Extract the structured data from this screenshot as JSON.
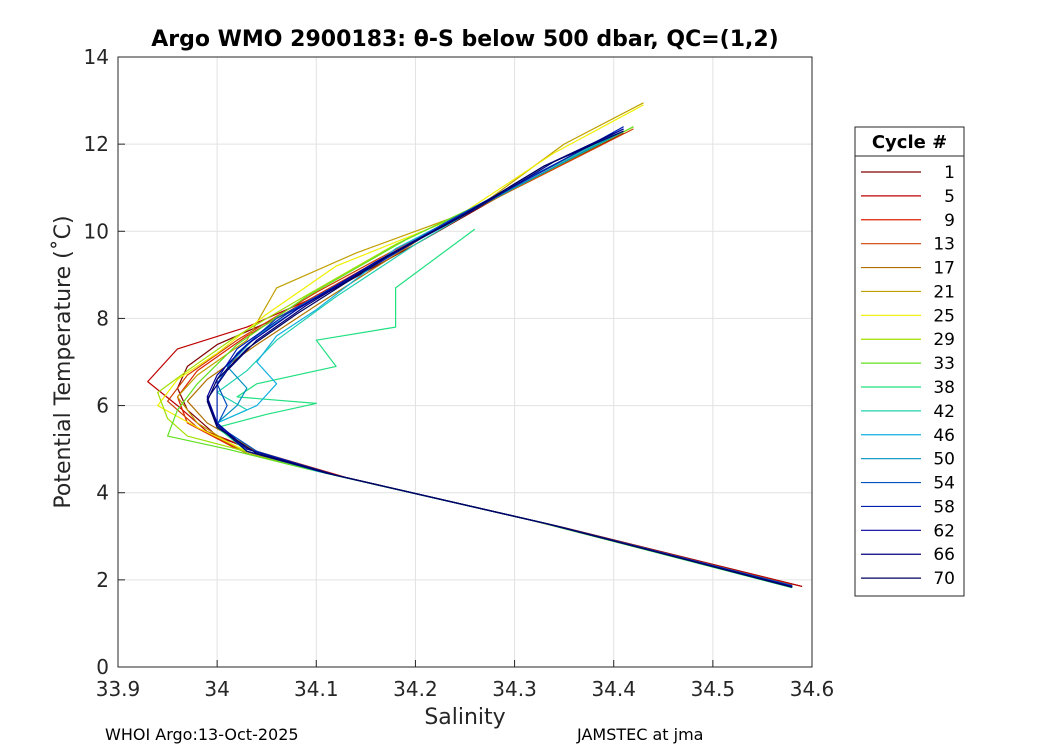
{
  "chart_data": {
    "type": "line",
    "title": "Argo WMO 2900183: θ-S below 500 dbar,  QC=(1,2)",
    "xlabel": "Salinity",
    "ylabel": "Potential Temperature (˚C)",
    "xlim": [
      33.9,
      34.6
    ],
    "ylim": [
      0,
      14
    ],
    "x_ticks": [
      33.9,
      34.0,
      34.1,
      34.2,
      34.3,
      34.4,
      34.5,
      34.6
    ],
    "x_tick_labels": [
      "33.9",
      "34",
      "34.1",
      "34.2",
      "34.3",
      "34.4",
      "34.5",
      "34.6"
    ],
    "y_ticks": [
      0,
      2,
      4,
      6,
      8,
      10,
      12,
      14
    ],
    "y_tick_labels": [
      "0",
      "2",
      "4",
      "6",
      "8",
      "10",
      "12",
      "14"
    ],
    "grid": true,
    "legend": {
      "title": "Cycle #",
      "placement": "right",
      "entries": [
        "1",
        "5",
        "9",
        "13",
        "17",
        "21",
        "25",
        "29",
        "33",
        "38",
        "42",
        "46",
        "50",
        "54",
        "58",
        "62",
        "66",
        "70"
      ],
      "colors": [
        "#800000",
        "#bf0000",
        "#df2000",
        "#d04000",
        "#b07000",
        "#c0a000",
        "#f0f000",
        "#a0e000",
        "#60e020",
        "#20e080",
        "#20d0b0",
        "#10b0e0",
        "#0090c0",
        "#0050c0",
        "#0020b0",
        "#0000a0",
        "#000080",
        "#000060"
      ]
    },
    "series": [
      {
        "name": "1",
        "color": "#800000",
        "points": [
          [
            34.59,
            1.85
          ],
          [
            34.35,
            3.2
          ],
          [
            34.12,
            4.4
          ],
          [
            34.05,
            4.85
          ],
          [
            34.0,
            5.3
          ],
          [
            33.97,
            5.9
          ],
          [
            33.96,
            6.4
          ],
          [
            33.97,
            6.9
          ],
          [
            34.0,
            7.4
          ],
          [
            34.06,
            8.0
          ],
          [
            34.12,
            8.7
          ],
          [
            34.2,
            9.7
          ],
          [
            34.3,
            11.0
          ],
          [
            34.41,
            12.25
          ]
        ]
      },
      {
        "name": "5",
        "color": "#bf0000",
        "points": [
          [
            34.59,
            1.85
          ],
          [
            34.33,
            3.3
          ],
          [
            34.13,
            4.35
          ],
          [
            34.04,
            4.95
          ],
          [
            33.99,
            5.4
          ],
          [
            33.96,
            6.0
          ],
          [
            33.93,
            6.55
          ],
          [
            33.96,
            7.3
          ],
          [
            34.03,
            7.8
          ],
          [
            34.1,
            8.5
          ],
          [
            34.2,
            9.8
          ],
          [
            34.31,
            11.1
          ],
          [
            34.41,
            12.3
          ]
        ]
      },
      {
        "name": "9",
        "color": "#df2000",
        "points": [
          [
            34.58,
            1.86
          ],
          [
            34.34,
            3.25
          ],
          [
            34.1,
            4.5
          ],
          [
            34.02,
            5.0
          ],
          [
            33.97,
            5.6
          ],
          [
            33.96,
            6.2
          ],
          [
            33.98,
            6.8
          ],
          [
            34.03,
            7.6
          ],
          [
            34.09,
            8.4
          ],
          [
            34.2,
            9.8
          ],
          [
            34.3,
            11.05
          ],
          [
            34.4,
            12.2
          ]
        ]
      },
      {
        "name": "13",
        "color": "#d04000",
        "points": [
          [
            34.58,
            1.88
          ],
          [
            34.32,
            3.35
          ],
          [
            34.11,
            4.45
          ],
          [
            34.03,
            4.9
          ],
          [
            33.98,
            5.5
          ],
          [
            33.95,
            6.1
          ],
          [
            33.97,
            6.7
          ],
          [
            34.02,
            7.5
          ],
          [
            34.1,
            8.6
          ],
          [
            34.21,
            9.95
          ],
          [
            34.32,
            11.2
          ],
          [
            34.42,
            12.35
          ]
        ]
      },
      {
        "name": "17",
        "color": "#b07000",
        "points": [
          [
            34.58,
            1.85
          ],
          [
            34.34,
            3.25
          ],
          [
            34.12,
            4.4
          ],
          [
            34.04,
            4.95
          ],
          [
            33.99,
            5.6
          ],
          [
            33.97,
            6.1
          ],
          [
            33.99,
            6.6
          ],
          [
            34.04,
            7.4
          ],
          [
            34.1,
            8.3
          ],
          [
            34.21,
            9.9
          ],
          [
            34.31,
            11.1
          ],
          [
            34.41,
            12.3
          ]
        ]
      },
      {
        "name": "21",
        "color": "#c0a000",
        "points": [
          [
            34.58,
            1.87
          ],
          [
            34.33,
            3.3
          ],
          [
            34.11,
            4.45
          ],
          [
            34.03,
            4.9
          ],
          [
            33.98,
            5.6
          ],
          [
            33.96,
            6.2
          ],
          [
            33.98,
            6.7
          ],
          [
            34.03,
            7.5
          ],
          [
            34.06,
            8.7
          ],
          [
            34.14,
            9.5
          ],
          [
            34.26,
            10.5
          ],
          [
            34.35,
            12.0
          ],
          [
            34.43,
            12.95
          ]
        ]
      },
      {
        "name": "25",
        "color": "#f0f000",
        "points": [
          [
            34.58,
            1.86
          ],
          [
            34.34,
            3.25
          ],
          [
            34.11,
            4.45
          ],
          [
            34.03,
            4.95
          ],
          [
            33.98,
            5.5
          ],
          [
            33.94,
            6.0
          ],
          [
            33.96,
            6.6
          ],
          [
            34.0,
            7.2
          ],
          [
            34.05,
            8.1
          ],
          [
            34.12,
            9.2
          ],
          [
            34.24,
            10.3
          ],
          [
            34.34,
            11.8
          ],
          [
            34.43,
            12.9
          ]
        ]
      },
      {
        "name": "29",
        "color": "#a0e000",
        "points": [
          [
            34.58,
            1.85
          ],
          [
            34.33,
            3.3
          ],
          [
            34.1,
            4.5
          ],
          [
            34.02,
            5.0
          ],
          [
            33.97,
            5.3
          ],
          [
            33.95,
            5.7
          ],
          [
            33.94,
            6.3
          ],
          [
            33.97,
            6.8
          ],
          [
            34.02,
            7.6
          ],
          [
            34.08,
            8.4
          ],
          [
            34.18,
            9.7
          ],
          [
            34.3,
            11.0
          ],
          [
            34.42,
            12.4
          ]
        ]
      },
      {
        "name": "33",
        "color": "#60e020",
        "points": [
          [
            34.58,
            1.82
          ],
          [
            34.32,
            3.35
          ],
          [
            34.09,
            4.55
          ],
          [
            34.01,
            5.0
          ],
          [
            33.95,
            5.3
          ],
          [
            33.96,
            5.9
          ],
          [
            33.98,
            6.5
          ],
          [
            34.02,
            7.4
          ],
          [
            34.09,
            8.5
          ],
          [
            34.19,
            9.8
          ],
          [
            34.3,
            11.0
          ],
          [
            34.42,
            12.4
          ]
        ]
      },
      {
        "name": "38",
        "color": "#20e080",
        "points": [
          [
            34.58,
            1.82
          ],
          [
            34.33,
            3.3
          ],
          [
            34.1,
            4.5
          ],
          [
            34.03,
            4.95
          ],
          [
            34.0,
            5.5
          ],
          [
            34.05,
            5.8
          ],
          [
            34.1,
            6.05
          ],
          [
            34.02,
            6.2
          ],
          [
            34.04,
            6.5
          ],
          [
            34.12,
            6.9
          ],
          [
            34.1,
            7.5
          ],
          [
            34.18,
            7.8
          ],
          [
            34.18,
            8.7
          ],
          [
            34.26,
            10.05
          ]
        ]
      },
      {
        "name": "42",
        "color": "#20d0b0",
        "points": [
          [
            34.58,
            1.84
          ],
          [
            34.34,
            3.25
          ],
          [
            34.11,
            4.45
          ],
          [
            34.03,
            4.95
          ],
          [
            34.0,
            5.6
          ],
          [
            34.03,
            5.9
          ],
          [
            34.0,
            6.3
          ],
          [
            34.03,
            6.8
          ],
          [
            34.06,
            7.5
          ],
          [
            34.12,
            8.5
          ],
          [
            34.2,
            9.7
          ],
          [
            34.3,
            11.05
          ],
          [
            34.4,
            12.2
          ]
        ]
      },
      {
        "name": "46",
        "color": "#10b0e0",
        "points": [
          [
            34.58,
            1.85
          ],
          [
            34.33,
            3.3
          ],
          [
            34.1,
            4.5
          ],
          [
            34.03,
            5.0
          ],
          [
            34.0,
            5.6
          ],
          [
            34.04,
            6.0
          ],
          [
            34.06,
            6.5
          ],
          [
            34.04,
            7.0
          ],
          [
            34.06,
            7.6
          ],
          [
            34.1,
            8.2
          ],
          [
            34.18,
            9.6
          ],
          [
            34.3,
            11.0
          ],
          [
            34.41,
            12.3
          ]
        ]
      },
      {
        "name": "50",
        "color": "#0090c0",
        "points": [
          [
            34.58,
            1.86
          ],
          [
            34.34,
            3.25
          ],
          [
            34.11,
            4.45
          ],
          [
            34.03,
            5.0
          ],
          [
            34.0,
            5.6
          ],
          [
            34.02,
            6.0
          ],
          [
            34.03,
            6.4
          ],
          [
            34.01,
            6.9
          ],
          [
            34.04,
            7.6
          ],
          [
            34.1,
            8.5
          ],
          [
            34.2,
            9.8
          ],
          [
            34.3,
            11.0
          ],
          [
            34.41,
            12.3
          ]
        ]
      },
      {
        "name": "54",
        "color": "#0050c0",
        "points": [
          [
            34.58,
            1.87
          ],
          [
            34.34,
            3.25
          ],
          [
            34.12,
            4.4
          ],
          [
            34.04,
            4.95
          ],
          [
            34.0,
            5.55
          ],
          [
            34.01,
            6.0
          ],
          [
            34.0,
            6.5
          ],
          [
            34.02,
            7.2
          ],
          [
            34.06,
            8.0
          ],
          [
            34.14,
            9.0
          ],
          [
            34.23,
            10.2
          ],
          [
            34.32,
            11.3
          ],
          [
            34.41,
            12.35
          ]
        ]
      },
      {
        "name": "58",
        "color": "#0020b0",
        "points": [
          [
            34.58,
            1.85
          ],
          [
            34.33,
            3.3
          ],
          [
            34.11,
            4.45
          ],
          [
            34.03,
            4.95
          ],
          [
            34.0,
            5.6
          ],
          [
            34.0,
            6.1
          ],
          [
            34.0,
            6.6
          ],
          [
            34.02,
            7.3
          ],
          [
            34.07,
            8.1
          ],
          [
            34.15,
            9.1
          ],
          [
            34.24,
            10.3
          ],
          [
            34.33,
            11.4
          ],
          [
            34.41,
            12.4
          ]
        ]
      },
      {
        "name": "62",
        "color": "#0000a0",
        "points": [
          [
            34.58,
            1.85
          ],
          [
            34.34,
            3.25
          ],
          [
            34.12,
            4.4
          ],
          [
            34.03,
            5.0
          ],
          [
            34.0,
            5.6
          ],
          [
            33.99,
            6.2
          ],
          [
            34.0,
            6.7
          ],
          [
            34.03,
            7.4
          ],
          [
            34.08,
            8.2
          ],
          [
            34.16,
            9.3
          ],
          [
            34.25,
            10.4
          ],
          [
            34.33,
            11.5
          ],
          [
            34.41,
            12.35
          ]
        ]
      },
      {
        "name": "66",
        "color": "#000080",
        "points": [
          [
            34.58,
            1.84
          ],
          [
            34.33,
            3.3
          ],
          [
            34.11,
            4.45
          ],
          [
            34.03,
            4.95
          ],
          [
            34.0,
            5.55
          ],
          [
            33.99,
            6.15
          ],
          [
            34.01,
            6.8
          ],
          [
            34.04,
            7.5
          ],
          [
            34.09,
            8.3
          ],
          [
            34.17,
            9.4
          ],
          [
            34.26,
            10.5
          ],
          [
            34.34,
            11.6
          ],
          [
            34.4,
            12.25
          ]
        ]
      },
      {
        "name": "70",
        "color": "#000060",
        "points": [
          [
            34.58,
            1.83
          ],
          [
            34.34,
            3.25
          ],
          [
            34.12,
            4.4
          ],
          [
            34.04,
            4.9
          ],
          [
            34.0,
            5.5
          ],
          [
            33.99,
            6.1
          ],
          [
            34.0,
            6.6
          ],
          [
            34.03,
            7.3
          ],
          [
            34.08,
            8.1
          ],
          [
            34.17,
            9.4
          ],
          [
            34.25,
            10.4
          ],
          [
            34.33,
            11.5
          ],
          [
            34.41,
            12.3
          ]
        ]
      }
    ]
  },
  "footer": {
    "left": "WHOI Argo:13-Oct-2025",
    "right": "JAMSTEC at jma"
  }
}
